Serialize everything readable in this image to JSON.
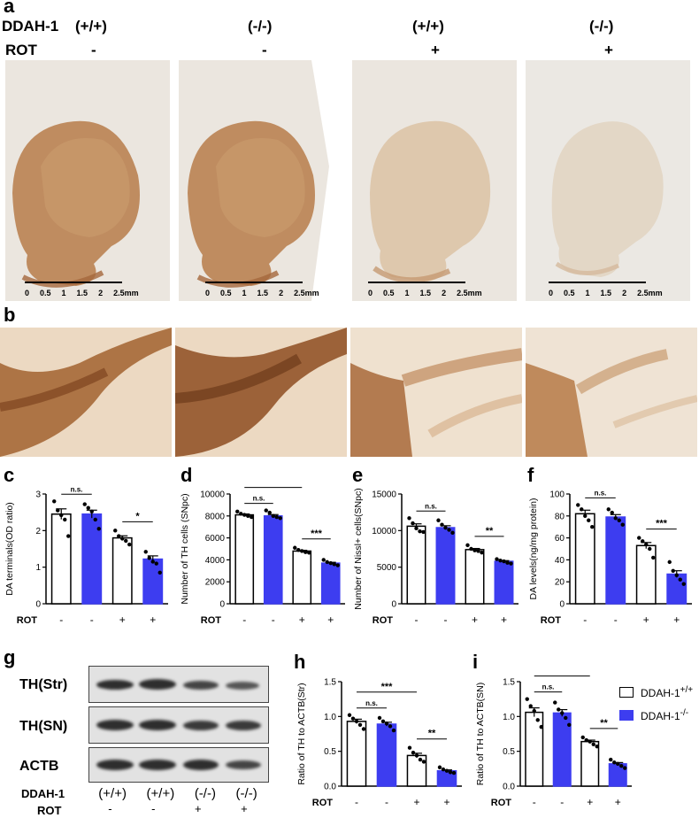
{
  "panels": {
    "a": "a",
    "b": "b",
    "c": "c",
    "d": "d",
    "e": "e",
    "f": "f",
    "g": "g",
    "h": "h",
    "i": "i"
  },
  "panel_a": {
    "row1_label": "DDAH-1",
    "row2_label": "ROT",
    "genotypes": [
      "(+/+)",
      "(-/-)",
      "(+/+)",
      "(-/-)"
    ],
    "rot": [
      "-",
      "-",
      "+",
      "+"
    ],
    "scale_ticks": [
      "0",
      "0.5",
      "1",
      "1.5",
      "2",
      "2.5mm"
    ]
  },
  "colors": {
    "white_bar": "#ffffff",
    "blue_bar": "#3d3df0",
    "stain_dark": "#a0643a",
    "stain_light": "#d8b89a"
  },
  "legend": {
    "wt": "DDAH-1+/+",
    "ko": "DDAH-1-/-"
  },
  "panel_g": {
    "rows": [
      "TH(Str)",
      "TH(SN)",
      "ACTB"
    ],
    "ddah_label": "DDAH-1",
    "rot_label": "ROT",
    "genotypes": [
      "(+/+)",
      "(+/+)",
      "(-/-)",
      "(-/-)"
    ],
    "rot": [
      "-",
      "-",
      "+",
      "+"
    ]
  },
  "chart_data": [
    {
      "id": "c",
      "type": "bar",
      "ylabel": "DA terminals(OD ratio)",
      "ylim": [
        0,
        3
      ],
      "yticks": [
        "0",
        "1",
        "2",
        "3"
      ],
      "rot": [
        "-",
        "-",
        "+",
        "+"
      ],
      "rot_label": "ROT",
      "series": [
        {
          "values": [
            2.45,
            2.45,
            1.8,
            1.22
          ]
        }
      ],
      "points": [
        [
          2.8,
          2.55,
          2.42,
          2.3,
          1.85
        ],
        [
          2.72,
          2.62,
          2.52,
          2.3,
          2.05
        ],
        [
          2.0,
          1.85,
          1.78,
          1.72,
          1.62
        ],
        [
          1.42,
          1.25,
          1.15,
          1.1,
          0.85
        ]
      ],
      "sig": [
        {
          "label": "n.s."
        },
        {
          "label": "**"
        },
        {
          "label": "*"
        }
      ]
    },
    {
      "id": "d",
      "type": "bar",
      "ylabel": "Number of TH cells (SNpc)",
      "ylim": [
        0,
        10000
      ],
      "yticks": [
        "0",
        "2000",
        "4000",
        "6000",
        "8000",
        "10000"
      ],
      "rot": [
        "-",
        "-",
        "+",
        "+"
      ],
      "rot_label": "ROT",
      "series": [
        {
          "values": [
            8100,
            8000,
            4800,
            3700
          ]
        }
      ],
      "points": [
        [
          8400,
          8200,
          8100,
          8000,
          7900
        ],
        [
          8500,
          8300,
          8000,
          7900,
          7800
        ],
        [
          5100,
          4900,
          4800,
          4700,
          4650
        ],
        [
          4000,
          3800,
          3700,
          3600,
          3500
        ]
      ],
      "sig": [
        {
          "label": "n.s."
        },
        {
          "label": "***"
        },
        {
          "label": "***"
        }
      ]
    },
    {
      "id": "e",
      "type": "bar",
      "ylabel": "Number of Nissl+ cells(SNpc)",
      "ylim": [
        0,
        15000
      ],
      "yticks": [
        "0",
        "5000",
        "10000",
        "15000"
      ],
      "rot": [
        "-",
        "-",
        "+",
        "+"
      ],
      "rot_label": "ROT",
      "series": [
        {
          "values": [
            10600,
            10400,
            7400,
            5800
          ]
        }
      ],
      "points": [
        [
          11700,
          11000,
          10300,
          9900,
          9800
        ],
        [
          11400,
          10800,
          10400,
          10100,
          9700
        ],
        [
          8000,
          7500,
          7300,
          7200,
          7000
        ],
        [
          6100,
          5900,
          5800,
          5600,
          5500
        ]
      ],
      "sig": [
        {
          "label": "n.s."
        },
        {
          "label": "**"
        }
      ]
    },
    {
      "id": "f",
      "type": "bar",
      "ylabel": "DA levels(ng/mg protein)",
      "ylim": [
        0,
        100
      ],
      "yticks": [
        "0",
        "20",
        "40",
        "60",
        "80",
        "100"
      ],
      "rot": [
        "-",
        "-",
        "+",
        "+"
      ],
      "rot_label": "ROT",
      "series": [
        {
          "values": [
            82,
            79,
            53,
            27
          ]
        }
      ],
      "points": [
        [
          90,
          86,
          80,
          76,
          70
        ],
        [
          86,
          83,
          78,
          76,
          72
        ],
        [
          60,
          57,
          54,
          50,
          42
        ],
        [
          38,
          30,
          26,
          22,
          18
        ]
      ],
      "sig": [
        {
          "label": "n.s."
        },
        {
          "label": "***"
        },
        {
          "label": "***"
        }
      ]
    },
    {
      "id": "h",
      "type": "bar",
      "ylabel": "Ratio of TH to ACTB(Str)",
      "ylim": [
        0,
        1.5
      ],
      "yticks": [
        "0.0",
        "0.5",
        "1.0",
        "1.5"
      ],
      "rot": [
        "-",
        "-",
        "+",
        "+"
      ],
      "rot_label": "ROT",
      "series": [
        {
          "values": [
            0.93,
            0.89,
            0.44,
            0.22
          ]
        }
      ],
      "points": [
        [
          1.02,
          0.97,
          0.93,
          0.88,
          0.82
        ],
        [
          0.98,
          0.93,
          0.9,
          0.86,
          0.8
        ],
        [
          0.55,
          0.48,
          0.44,
          0.38,
          0.35
        ],
        [
          0.27,
          0.24,
          0.22,
          0.2,
          0.19
        ]
      ],
      "sig": [
        {
          "label": "n.s."
        },
        {
          "label": "***"
        },
        {
          "label": "**"
        }
      ]
    },
    {
      "id": "i",
      "type": "bar",
      "ylabel": "Ratio of TH to ACTB(SN)",
      "ylim": [
        0,
        1.5
      ],
      "yticks": [
        "0.0",
        "0.5",
        "1.0",
        "1.5"
      ],
      "rot": [
        "-",
        "-",
        "+",
        "+"
      ],
      "rot_label": "ROT",
      "series": [
        {
          "values": [
            1.06,
            1.05,
            0.64,
            0.32
          ]
        }
      ],
      "points": [
        [
          1.25,
          1.15,
          1.08,
          0.95,
          0.85
        ],
        [
          1.2,
          1.1,
          1.05,
          0.98,
          0.88
        ],
        [
          0.7,
          0.66,
          0.64,
          0.6,
          0.57
        ],
        [
          0.38,
          0.34,
          0.32,
          0.29,
          0.26
        ]
      ],
      "sig": [
        {
          "label": "n.s."
        },
        {
          "label": "***"
        },
        {
          "label": "**"
        }
      ]
    }
  ]
}
